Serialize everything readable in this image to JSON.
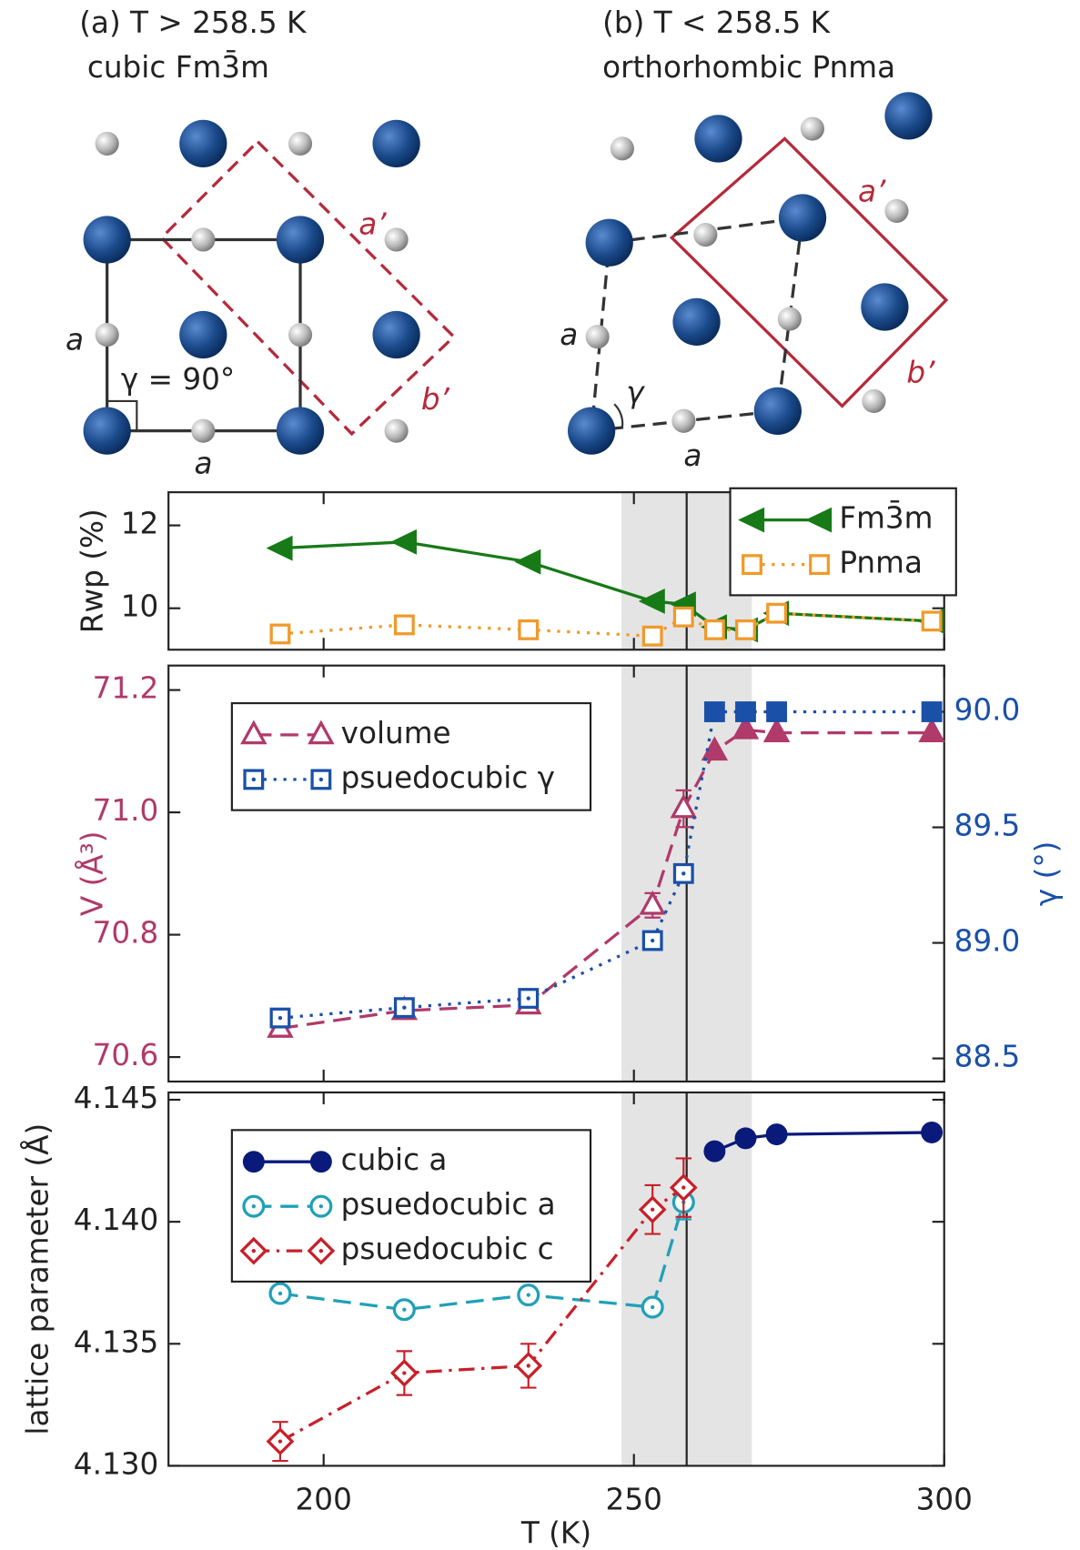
{
  "panels": [
    {
      "title": "(a) T > 258.5 K",
      "subtitle": "cubic Fm3̄m",
      "labels": [
        "a",
        "γ = 90°",
        "a",
        "a’",
        "b’"
      ]
    },
    {
      "title": "(b) T < 258.5 K",
      "subtitle": "orthorhombic Pnma",
      "labels": [
        "a",
        "γ",
        "a",
        "a’",
        "b’"
      ]
    }
  ],
  "chart_data": [
    {
      "type": "line",
      "ylabel": "Rwp (%)",
      "x": [
        193,
        213,
        233,
        253,
        258,
        263,
        268,
        273,
        298
      ],
      "xlim": [
        175,
        300
      ],
      "xticks": [
        200,
        250,
        300
      ],
      "ylim": [
        9,
        12.8
      ],
      "yticks": [
        10,
        12
      ],
      "vline": 258.5,
      "shaded": [
        248,
        269
      ],
      "legend": "upper right",
      "series": [
        {
          "name": "Fm3̄m",
          "color": "#177a17",
          "marker": "triangle-left",
          "linestyle": "solid",
          "filled": true,
          "values": [
            11.45,
            11.6,
            11.12,
            10.17,
            10.1,
            9.55,
            9.48,
            9.88,
            9.69
          ]
        },
        {
          "name": "Pnma",
          "color": "#f09a2a",
          "marker": "square",
          "linestyle": "dotted",
          "filled": false,
          "values": [
            9.38,
            9.6,
            9.48,
            9.33,
            9.79,
            9.48,
            9.48,
            9.88,
            9.69
          ]
        }
      ]
    },
    {
      "type": "line",
      "ylabel": "V (Å³)",
      "ycolor": "#b03a6a",
      "y2label": "γ (°)",
      "y2color": "#1a50a8",
      "x": [
        193,
        213,
        233,
        253,
        258,
        263,
        268,
        273,
        298
      ],
      "xlim": [
        175,
        300
      ],
      "xticks": [
        200,
        250,
        300
      ],
      "ylim": [
        70.56,
        71.24
      ],
      "yticks": [
        70.6,
        70.8,
        {
          "value": 71.0,
          "label": "71.0"
        },
        71.2
      ],
      "y2lim": [
        88.4,
        90.2
      ],
      "y2ticks": [
        88.5,
        {
          "value": 89.0,
          "label": "89.0"
        },
        89.5,
        {
          "value": 90.0,
          "label": "90.0"
        }
      ],
      "vline": 258.5,
      "shaded": [
        248,
        269
      ],
      "legend": "upper left",
      "series": [
        {
          "name": "volume",
          "color": "#b03a6a",
          "marker": "triangle-up",
          "linestyle": "dashed",
          "filled": [
            false,
            false,
            false,
            false,
            false,
            true,
            true,
            true,
            true
          ],
          "values": [
            70.647,
            70.676,
            70.685,
            70.848,
            71.006,
            71.1,
            71.135,
            71.13,
            71.13
          ],
          "errors": [
            0.01,
            0.012,
            0.012,
            0.02,
            0.03,
            null,
            null,
            null,
            null
          ]
        },
        {
          "name": "psuedocubic γ",
          "color": "#1a50a8",
          "marker": "square-dot",
          "linestyle": "dotted",
          "axis": "y2",
          "filled": [
            false,
            false,
            false,
            false,
            false,
            true,
            true,
            true,
            true
          ],
          "values": [
            88.675,
            88.72,
            88.76,
            89.01,
            89.3,
            90.0,
            90.0,
            90.0,
            90.0
          ]
        }
      ]
    },
    {
      "type": "line",
      "ylabel": "lattice parameter (Å)",
      "xlabel": "T (K)",
      "x": [
        193,
        213,
        233,
        253,
        258,
        263,
        268,
        273,
        298
      ],
      "xlim": [
        175,
        300
      ],
      "xticks": [
        200,
        250,
        300
      ],
      "ylim": [
        4.13,
        4.1453
      ],
      "yticks": [
        {
          "value": 4.13,
          "label": "4.130"
        },
        4.135,
        {
          "value": 4.14,
          "label": "4.140"
        },
        4.145
      ],
      "vline": 258.5,
      "shaded": [
        248,
        269
      ],
      "legend": "upper left",
      "series": [
        {
          "name": "cubic a",
          "color": "#0a1a7a",
          "marker": "circle",
          "linestyle": "solid",
          "filled": true,
          "values": [
            null,
            null,
            null,
            null,
            null,
            4.14289,
            4.14342,
            4.14358,
            4.14366
          ]
        },
        {
          "name": "psuedocubic a",
          "color": "#20a0b8",
          "marker": "circle-dot",
          "linestyle": "dashed",
          "filled": false,
          "values": [
            4.13706,
            4.1364,
            4.137,
            4.1365,
            4.1408,
            null,
            null,
            null,
            null
          ],
          "errors": [
            null,
            null,
            null,
            null,
            0.0007,
            null,
            null,
            null,
            null
          ]
        },
        {
          "name": "psuedocubic c",
          "color": "#c8202a",
          "marker": "diamond-dot",
          "linestyle": "dashdot",
          "filled": false,
          "values": [
            4.131,
            4.1338,
            4.1341,
            4.1405,
            4.1414,
            null,
            null,
            null,
            null
          ],
          "errors": [
            0.0008,
            0.0009,
            0.0009,
            0.001,
            0.0012,
            null,
            null,
            null,
            null
          ]
        }
      ]
    }
  ]
}
